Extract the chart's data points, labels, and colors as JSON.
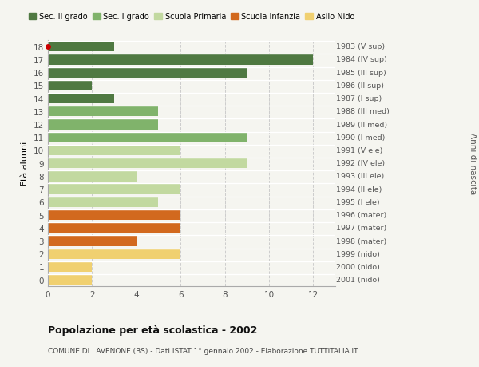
{
  "ages": [
    18,
    17,
    16,
    15,
    14,
    13,
    12,
    11,
    10,
    9,
    8,
    7,
    6,
    5,
    4,
    3,
    2,
    1,
    0
  ],
  "right_labels": [
    "1983 (V sup)",
    "1984 (IV sup)",
    "1985 (III sup)",
    "1986 (II sup)",
    "1987 (I sup)",
    "1988 (III med)",
    "1989 (II med)",
    "1990 (I med)",
    "1991 (V ele)",
    "1992 (IV ele)",
    "1993 (III ele)",
    "1994 (II ele)",
    "1995 (I ele)",
    "1996 (mater)",
    "1997 (mater)",
    "1998 (mater)",
    "1999 (nido)",
    "2000 (nido)",
    "2001 (nido)"
  ],
  "values": [
    3,
    12,
    9,
    2,
    3,
    5,
    5,
    9,
    6,
    9,
    4,
    6,
    5,
    6,
    6,
    4,
    6,
    2,
    2
  ],
  "categories": [
    "Sec. II grado",
    "Sec. II grado",
    "Sec. II grado",
    "Sec. II grado",
    "Sec. II grado",
    "Sec. I grado",
    "Sec. I grado",
    "Sec. I grado",
    "Scuola Primaria",
    "Scuola Primaria",
    "Scuola Primaria",
    "Scuola Primaria",
    "Scuola Primaria",
    "Scuola Infanzia",
    "Scuola Infanzia",
    "Scuola Infanzia",
    "Asilo Nido",
    "Asilo Nido",
    "Asilo Nido"
  ],
  "colors": {
    "Sec. II grado": "#4f7942",
    "Sec. I grado": "#80b36b",
    "Scuola Primaria": "#c2d9a0",
    "Scuola Infanzia": "#d2691e",
    "Asilo Nido": "#f0d070"
  },
  "legend_order": [
    "Sec. II grado",
    "Sec. I grado",
    "Scuola Primaria",
    "Scuola Infanzia",
    "Asilo Nido"
  ],
  "ylabel": "Età alunni",
  "right_ylabel": "Anni di nascita",
  "xlim": [
    0,
    13
  ],
  "xticks": [
    0,
    2,
    4,
    6,
    8,
    10,
    12
  ],
  "title": "Popolazione per età scolastica - 2002",
  "subtitle": "COMUNE DI LAVENONE (BS) - Dati ISTAT 1° gennaio 2002 - Elaborazione TUTTITALIA.IT",
  "bg_color": "#f5f5f0",
  "bar_height": 0.82,
  "special_dot_age": 18,
  "special_dot_color": "#cc0000"
}
